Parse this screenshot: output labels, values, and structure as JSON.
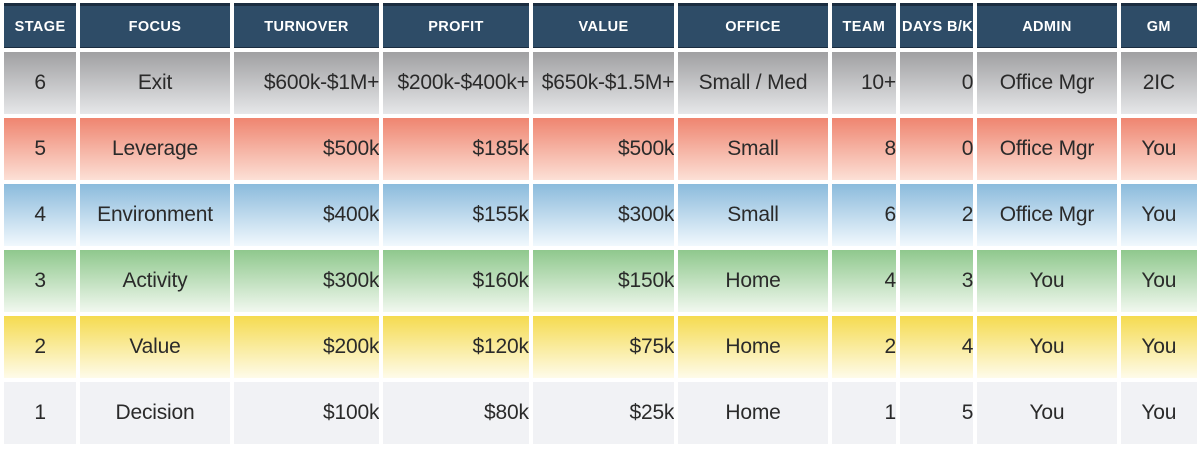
{
  "table": {
    "columns": [
      {
        "key": "stage",
        "label": "STAGE",
        "align": "center"
      },
      {
        "key": "focus",
        "label": "FOCUS",
        "align": "center"
      },
      {
        "key": "turnover",
        "label": "TURNOVER",
        "align": "right"
      },
      {
        "key": "profit",
        "label": "PROFIT",
        "align": "right"
      },
      {
        "key": "value",
        "label": "VALUE",
        "align": "right"
      },
      {
        "key": "office",
        "label": "OFFICE",
        "align": "center"
      },
      {
        "key": "team",
        "label": "TEAM",
        "align": "right"
      },
      {
        "key": "days_bk",
        "label": "DAYS B/K",
        "align": "right"
      },
      {
        "key": "admin",
        "label": "ADMIN",
        "align": "center"
      },
      {
        "key": "gm",
        "label": "GM",
        "align": "center"
      }
    ],
    "rows": [
      {
        "theme": "gray",
        "cells": {
          "stage": "6",
          "focus": "Exit",
          "turnover": "$600k-$1M+",
          "profit": "$200k-$400k+",
          "value": "$650k-$1.5M+",
          "office": "Small / Med",
          "team": "10+",
          "days_bk": "0",
          "admin": "Office Mgr",
          "gm": "2IC"
        }
      },
      {
        "theme": "red",
        "cells": {
          "stage": "5",
          "focus": "Leverage",
          "turnover": "$500k",
          "profit": "$185k",
          "value": "$500k",
          "office": "Small",
          "team": "8",
          "days_bk": "0",
          "admin": "Office Mgr",
          "gm": "You"
        }
      },
      {
        "theme": "blue",
        "cells": {
          "stage": "4",
          "focus": "Environment",
          "turnover": "$400k",
          "profit": "$155k",
          "value": "$300k",
          "office": "Small",
          "team": "6",
          "days_bk": "2",
          "admin": "Office Mgr",
          "gm": "You"
        }
      },
      {
        "theme": "green",
        "cells": {
          "stage": "3",
          "focus": "Activity",
          "turnover": "$300k",
          "profit": "$160k",
          "value": "$150k",
          "office": "Home",
          "team": "4",
          "days_bk": "3",
          "admin": "You",
          "gm": "You"
        }
      },
      {
        "theme": "yellow",
        "cells": {
          "stage": "2",
          "focus": "Value",
          "turnover": "$200k",
          "profit": "$120k",
          "value": "$75k",
          "office": "Home",
          "team": "2",
          "days_bk": "4",
          "admin": "You",
          "gm": "You"
        }
      },
      {
        "theme": "plain",
        "cells": {
          "stage": "1",
          "focus": "Decision",
          "turnover": "$100k",
          "profit": "$80k",
          "value": "$25k",
          "office": "Home",
          "team": "1",
          "days_bk": "5",
          "admin": "You",
          "gm": "You"
        }
      }
    ],
    "colors": {
      "header_bg": "#2e4c67",
      "header_top_edge": "#1b2d40",
      "header_text": "#ffffff",
      "cell_text": "#2a2a2a",
      "gap": "#ffffff",
      "themes": {
        "gray": {
          "top": "#a0a0a2",
          "bottom": "#e6e7e9"
        },
        "red": {
          "top": "#ef8570",
          "bottom": "#fce0d6"
        },
        "blue": {
          "top": "#8bbbdc",
          "bottom": "#f1f8fd"
        },
        "green": {
          "top": "#8fc88d",
          "bottom": "#f1f8ef"
        },
        "yellow": {
          "top": "#f5db50",
          "bottom": "#fefbea"
        },
        "plain": {
          "top": "#f1f2f5",
          "bottom": "#f1f2f5"
        }
      }
    }
  },
  "chart_data": {
    "type": "table",
    "title": "",
    "columns": [
      "STAGE",
      "FOCUS",
      "TURNOVER",
      "PROFIT",
      "VALUE",
      "OFFICE",
      "TEAM",
      "DAYS B/K",
      "ADMIN",
      "GM"
    ],
    "rows": [
      [
        "6",
        "Exit",
        "$600k-$1M+",
        "$200k-$400k+",
        "$650k-$1.5M+",
        "Small / Med",
        "10+",
        "0",
        "Office Mgr",
        "2IC"
      ],
      [
        "5",
        "Leverage",
        "$500k",
        "$185k",
        "$500k",
        "Small",
        "8",
        "0",
        "Office Mgr",
        "You"
      ],
      [
        "4",
        "Environment",
        "$400k",
        "$155k",
        "$300k",
        "Small",
        "6",
        "2",
        "Office Mgr",
        "You"
      ],
      [
        "3",
        "Activity",
        "$300k",
        "$160k",
        "$150k",
        "Home",
        "4",
        "3",
        "You",
        "You"
      ],
      [
        "2",
        "Value",
        "$200k",
        "$120k",
        "$75k",
        "Home",
        "2",
        "4",
        "You",
        "You"
      ],
      [
        "1",
        "Decision",
        "$100k",
        "$80k",
        "$25k",
        "Home",
        "1",
        "5",
        "You",
        "You"
      ]
    ],
    "row_theme_colors": [
      "gray",
      "red",
      "blue",
      "green",
      "yellow",
      "plain"
    ],
    "layout_hints": {
      "header_position": "top",
      "grid": "white-gaps",
      "row_order": "stage-descending"
    }
  }
}
